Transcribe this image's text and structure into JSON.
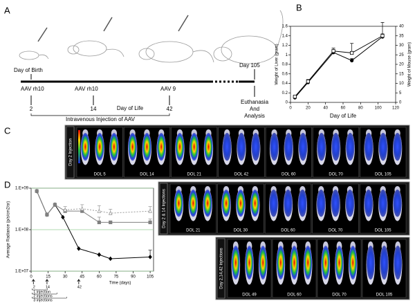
{
  "panel_a": {
    "label": "A",
    "birth": "Day of Birth",
    "day_end": "Day 105",
    "injections": [
      {
        "vector": "AAV rh10",
        "day": 2
      },
      {
        "vector": "AAV rh10",
        "day": 14
      },
      {
        "vector": "AAV 9",
        "day": 42
      }
    ],
    "axis_label": "Day of Life",
    "caption": "Intravenous Injection of AAV",
    "end_note": [
      "Euthanasia",
      "And",
      "Analysis"
    ]
  },
  "panel_c": {
    "label": "C",
    "title": "Day 2 Injection",
    "timepoints": [
      "DOL 5",
      "DOL 14",
      "DOL 21",
      "DOL 42",
      "DOL 60",
      "DOL 70",
      "DOL 105"
    ]
  },
  "image_panels": [
    {
      "title": "Day 2 & 14 Injections",
      "timepoints": [
        "DOL 21",
        "DOL 30",
        "DOL 60",
        "DOL 70",
        "DOL 105"
      ]
    },
    {
      "title": "Day 2,14,42 Injections",
      "timepoints": [
        "DOL 49",
        "DOL 60",
        "DOL 70",
        "DOL 105"
      ]
    }
  ],
  "chart_data": [
    {
      "type": "line",
      "panel_label": "B",
      "x_label": "Day of Life",
      "y_label": "Weight of Liver (gram)",
      "y2_label": "Weight of Mouse (gram)",
      "x": [
        5,
        20,
        49,
        70,
        105
      ],
      "xlim": [
        0,
        120
      ],
      "xticks": [
        0,
        20,
        40,
        60,
        80,
        100,
        120
      ],
      "ylim": [
        0,
        1.6
      ],
      "yticks": [
        0,
        0.2,
        0.4,
        0.6,
        0.8,
        1,
        1.2,
        1.4,
        1.6
      ],
      "y2lim": [
        0,
        40
      ],
      "y2ticks": [
        0,
        5,
        10,
        15,
        20,
        25,
        30,
        35,
        40
      ],
      "series": [
        {
          "color": "#000000",
          "marker": "circle",
          "marker_fill": "#000000",
          "values": [
            0.1,
            0.42,
            1.05,
            0.88,
            1.38
          ],
          "errors": [
            0.02,
            0.03,
            0.04,
            0.04,
            0.06
          ]
        },
        {
          "color": "#000000",
          "marker": "square",
          "marker_fill": "#ffffff",
          "axis": "y2",
          "values": [
            3,
            11,
            27,
            26,
            35
          ],
          "errors": [
            0.5,
            1,
            1.5,
            5,
            7
          ]
        }
      ]
    },
    {
      "type": "line",
      "panel_label": "D",
      "x_label": "Time (days)",
      "y_label": "Average Radiance (p/s/cm2/sr)",
      "log_y": true,
      "grid": true,
      "xlim": [
        0,
        108
      ],
      "xticks": [
        0,
        15,
        30,
        45,
        60,
        75,
        90,
        105
      ],
      "ylim": [
        10000000,
        1000000000
      ],
      "yticks": [
        {
          "value": 10000000,
          "label": "1.E+07"
        },
        {
          "value": 100000000,
          "label": "1.E+08"
        },
        {
          "value": 1000000000,
          "label": "1.E+09"
        }
      ],
      "injection_days": [
        2,
        14,
        42
      ],
      "legend": [
        "1 injection",
        "2 injections",
        "3 injections"
      ],
      "series": [
        {
          "color": "#000000",
          "marker": "diamond",
          "marker_fill": "#000000",
          "dash": "none",
          "x": [
            5,
            14,
            21,
            28,
            42,
            60,
            70,
            105
          ],
          "values": [
            850000000,
            230000000,
            400000000,
            200000000,
            35000000,
            25000000,
            20000000,
            22000000
          ],
          "errors": [
            null,
            null,
            null,
            null,
            null,
            null,
            null,
            10000000
          ]
        },
        {
          "color": "#808080",
          "marker": "square",
          "marker_fill": "#808080",
          "dash": "none",
          "x": [
            5,
            14,
            21,
            30,
            45,
            60,
            70,
            105
          ],
          "values": [
            850000000,
            230000000,
            400000000,
            280000000,
            280000000,
            150000000,
            150000000,
            150000000
          ],
          "errors": [
            null,
            null,
            null,
            null,
            null,
            50000000,
            null,
            30000000
          ]
        },
        {
          "color": "#999999",
          "marker": "triangle",
          "marker_fill": "#ffffff",
          "dash": "2,2",
          "x": [
            30,
            45,
            60,
            70,
            105
          ],
          "values": [
            300000000,
            320000000,
            280000000,
            250000000,
            280000000
          ],
          "errors": [
            60000000,
            80000000,
            100000000,
            60000000,
            80000000
          ]
        }
      ]
    }
  ]
}
